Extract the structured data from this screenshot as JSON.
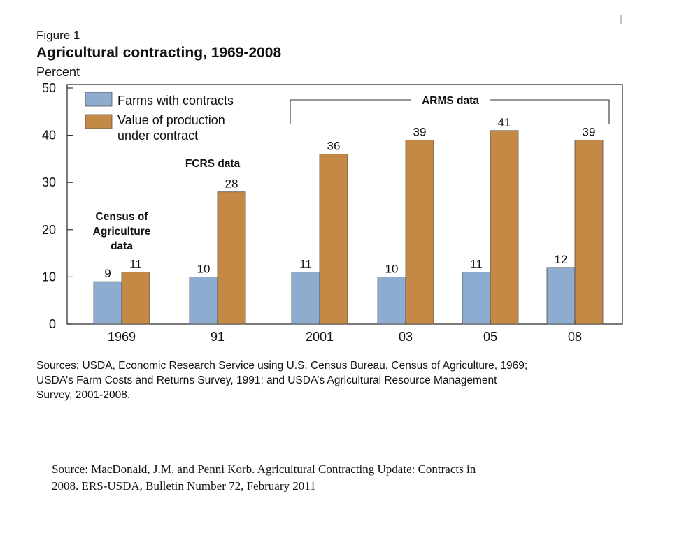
{
  "figure": {
    "label": "Figure 1",
    "title": "Agricultural contracting, 1969-2008"
  },
  "chart_data": {
    "type": "bar",
    "ylabel": "Percent",
    "ylim": [
      0,
      50
    ],
    "yticks": [
      0,
      10,
      20,
      30,
      40,
      50
    ],
    "grid": false,
    "legend_position": "top-left",
    "categories": [
      "1969",
      "91",
      "2001",
      "03",
      "05",
      "08"
    ],
    "series": [
      {
        "name": "Farms with contracts",
        "values": [
          9,
          10,
          11,
          10,
          11,
          12
        ],
        "color": "#8eacd0"
      },
      {
        "name": "Value of production under contract",
        "values": [
          11,
          28,
          36,
          39,
          41,
          39
        ],
        "color": "#c48a45"
      }
    ],
    "legend": {
      "farms": "Farms with contracts",
      "value_line1": "Value of production",
      "value_line2": "under contract"
    },
    "annotations": {
      "census_line1": "Census of",
      "census_line2": "Agriculture",
      "census_line3": "data",
      "fcrs": "FCRS data",
      "arms": "ARMS data"
    },
    "sources": [
      "Sources: USDA, Economic Research Service using U.S. Census Bureau, Census of Agriculture, 1969;",
      "USDA’s Farm Costs and Returns Survey, 1991; and USDA’s Agricultural Resource Management",
      "Survey, 2001-2008."
    ]
  },
  "caption": {
    "line1": "Source: MacDonald, J.M. and Penni Korb. Agricultural Contracting Update: Contracts in",
    "line2": "2008. ERS-USDA, Bulletin Number 72, February 2011"
  }
}
